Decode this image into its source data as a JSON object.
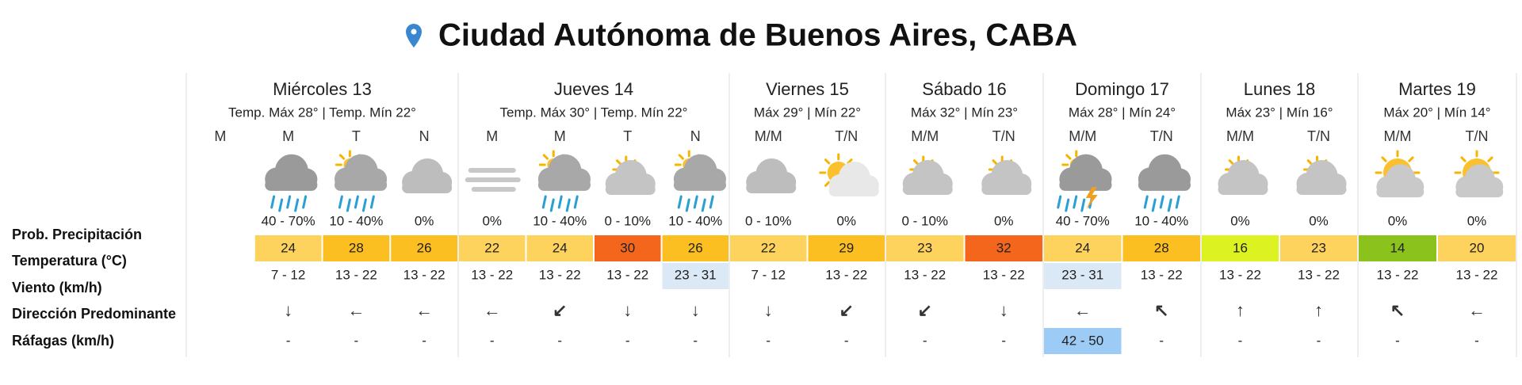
{
  "header": {
    "title": "Ciudad Autónoma de Buenos Aires, CABA"
  },
  "row_labels": [
    "Prob. Precipitación",
    "Temperatura (°C)",
    "Viento (km/h)",
    "Dirección Predominante",
    "Ráfagas (km/h)"
  ],
  "days": [
    {
      "name": "Miércoles 13",
      "summary": "Temp. Máx 28° | Temp. Mín 22°",
      "periods": [
        {
          "label": "M"
        },
        {
          "label": "M",
          "precip": "40 - 70%",
          "temp": 24,
          "wind": "7 - 12",
          "dir": "↓",
          "gust": "-"
        },
        {
          "label": "T",
          "precip": "10 - 40%",
          "temp": 28,
          "wind": "13 - 22",
          "dir": "←",
          "gust": "-"
        },
        {
          "label": "N",
          "precip": "0%",
          "temp": 26,
          "wind": "13 - 22",
          "dir": "←",
          "gust": "-"
        }
      ]
    },
    {
      "name": "Jueves 14",
      "summary": "Temp. Máx 30° | Temp. Mín 22°",
      "periods": [
        {
          "label": "M",
          "precip": "0%",
          "temp": 22,
          "wind": "13 - 22",
          "dir": "←",
          "gust": "-"
        },
        {
          "label": "M",
          "precip": "10 - 40%",
          "temp": 24,
          "wind": "13 - 22",
          "dir": "↙",
          "gust": "-"
        },
        {
          "label": "T",
          "precip": "0 - 10%",
          "temp": 30,
          "wind": "13 - 22",
          "dir": "↓",
          "gust": "-"
        },
        {
          "label": "N",
          "precip": "10 - 40%",
          "temp": 26,
          "wind": "23 - 31",
          "dir": "↓",
          "gust": "-"
        }
      ]
    },
    {
      "name": "Viernes 15",
      "summary": "Máx 29° | Mín 22°",
      "periods": [
        {
          "label": "M/M",
          "precip": "0 - 10%",
          "temp": 22,
          "wind": "7 - 12",
          "dir": "↓",
          "gust": "-"
        },
        {
          "label": "T/N",
          "precip": "0%",
          "temp": 29,
          "wind": "13 - 22",
          "dir": "↙",
          "gust": "-"
        }
      ]
    },
    {
      "name": "Sábado 16",
      "summary": "Máx 32° | Mín 23°",
      "periods": [
        {
          "label": "M/M",
          "precip": "0 - 10%",
          "temp": 23,
          "wind": "13 - 22",
          "dir": "↙",
          "gust": "-"
        },
        {
          "label": "T/N",
          "precip": "0%",
          "temp": 32,
          "wind": "13 - 22",
          "dir": "↓",
          "gust": "-"
        }
      ]
    },
    {
      "name": "Domingo 17",
      "summary": "Máx 28° | Mín 24°",
      "periods": [
        {
          "label": "M/M",
          "precip": "40 - 70%",
          "temp": 24,
          "wind": "23 - 31",
          "dir": "←",
          "gust": "42 - 50"
        },
        {
          "label": "T/N",
          "precip": "10 - 40%",
          "temp": 28,
          "wind": "13 - 22",
          "dir": "↖",
          "gust": "-"
        }
      ]
    },
    {
      "name": "Lunes 18",
      "summary": "Máx 23° | Mín 16°",
      "periods": [
        {
          "label": "M/M",
          "precip": "0%",
          "temp": 16,
          "wind": "13 - 22",
          "dir": "↑",
          "gust": "-"
        },
        {
          "label": "T/N",
          "precip": "0%",
          "temp": 23,
          "wind": "13 - 22",
          "dir": "↑",
          "gust": "-"
        }
      ]
    },
    {
      "name": "Martes 19",
      "summary": "Máx 20° | Mín 14°",
      "periods": [
        {
          "label": "M/M",
          "precip": "0%",
          "temp": 14,
          "wind": "13 - 22",
          "dir": "↖",
          "gust": "-"
        },
        {
          "label": "T/N",
          "precip": "0%",
          "temp": 20,
          "wind": "13 - 22",
          "dir": "←",
          "gust": "-"
        }
      ]
    }
  ]
}
